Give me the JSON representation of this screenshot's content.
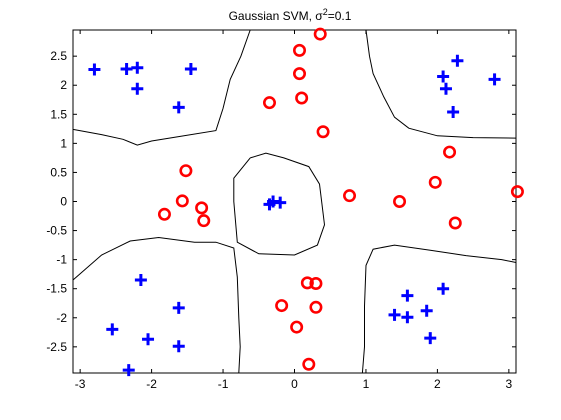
{
  "chart_data": {
    "type": "scatter",
    "title_main": "Gaussian SVM, σ",
    "title_sup": "2",
    "title_rest": "=0.1",
    "xlim": [
      -3.1,
      3.1
    ],
    "ylim": [
      -2.95,
      2.95
    ],
    "xticks": [
      -3,
      -2,
      -1,
      0,
      1,
      2,
      3
    ],
    "yticks": [
      2.5,
      2,
      1.5,
      1,
      0.5,
      0,
      -0.5,
      -1,
      -1.5,
      -2,
      -2.5
    ],
    "grid": false,
    "legend": "none",
    "series": [
      {
        "marker": "plus",
        "color": "#0000ff",
        "points": [
          [
            -2.8,
            2.27
          ],
          [
            -2.35,
            2.28
          ],
          [
            -2.2,
            2.3
          ],
          [
            -1.45,
            2.28
          ],
          [
            -2.2,
            1.94
          ],
          [
            -1.62,
            1.62
          ],
          [
            2.08,
            2.15
          ],
          [
            2.12,
            1.94
          ],
          [
            2.28,
            2.42
          ],
          [
            2.8,
            2.1
          ],
          [
            2.22,
            1.54
          ],
          [
            -0.35,
            -0.05
          ],
          [
            -0.3,
            0.0
          ],
          [
            -0.2,
            -0.02
          ],
          [
            -2.15,
            -1.35
          ],
          [
            -1.62,
            -1.83
          ],
          [
            -2.55,
            -2.2
          ],
          [
            -2.05,
            -2.37
          ],
          [
            -1.62,
            -2.49
          ],
          [
            -2.32,
            -2.9
          ],
          [
            1.58,
            -1.62
          ],
          [
            2.08,
            -1.5
          ],
          [
            1.4,
            -1.95
          ],
          [
            1.58,
            -1.99
          ],
          [
            1.85,
            -1.88
          ],
          [
            1.9,
            -2.35
          ]
        ]
      },
      {
        "marker": "circle",
        "color": "#ff0000",
        "points": [
          [
            0.36,
            2.88
          ],
          [
            0.07,
            2.6
          ],
          [
            0.07,
            2.2
          ],
          [
            0.1,
            1.78
          ],
          [
            -0.35,
            1.7
          ],
          [
            0.4,
            1.2
          ],
          [
            -1.52,
            0.53
          ],
          [
            -1.57,
            0.01
          ],
          [
            -1.82,
            -0.22
          ],
          [
            -1.3,
            -0.11
          ],
          [
            -1.27,
            -0.33
          ],
          [
            0.77,
            0.1
          ],
          [
            1.47,
            0.0
          ],
          [
            1.97,
            0.33
          ],
          [
            2.17,
            0.85
          ],
          [
            2.25,
            -0.37
          ],
          [
            3.12,
            0.17
          ],
          [
            0.18,
            -1.4
          ],
          [
            0.3,
            -1.41
          ],
          [
            -0.18,
            -1.79
          ],
          [
            0.3,
            -1.82
          ],
          [
            0.03,
            -2.16
          ],
          [
            0.2,
            -2.8
          ]
        ]
      }
    ],
    "boundaries": [
      [
        [
          -3.1,
          1.24
        ],
        [
          -2.7,
          1.15
        ],
        [
          -2.4,
          1.07
        ],
        [
          -2.2,
          0.97
        ],
        [
          -2.0,
          1.04
        ],
        [
          -1.6,
          1.12
        ],
        [
          -1.1,
          1.22
        ],
        [
          -1.0,
          1.6
        ],
        [
          -0.9,
          2.1
        ],
        [
          -0.75,
          2.5
        ],
        [
          -0.62,
          2.95
        ]
      ],
      [
        [
          1.0,
          2.95
        ],
        [
          1.05,
          2.5
        ],
        [
          1.1,
          2.2
        ],
        [
          1.25,
          1.8
        ],
        [
          1.4,
          1.45
        ],
        [
          1.6,
          1.26
        ],
        [
          2.0,
          1.13
        ],
        [
          2.5,
          1.1
        ],
        [
          3.1,
          1.09
        ]
      ],
      [
        [
          -3.1,
          -1.35
        ],
        [
          -2.7,
          -0.92
        ],
        [
          -2.3,
          -0.68
        ],
        [
          -1.9,
          -0.62
        ],
        [
          -1.4,
          -0.7
        ],
        [
          -1.1,
          -0.7
        ],
        [
          -0.85,
          -0.8
        ],
        [
          -0.8,
          -1.3
        ],
        [
          -0.78,
          -2.0
        ],
        [
          -0.76,
          -2.5
        ],
        [
          -0.78,
          -2.95
        ]
      ],
      [
        [
          0.95,
          -2.95
        ],
        [
          0.98,
          -2.5
        ],
        [
          0.98,
          -1.8
        ],
        [
          1.0,
          -1.1
        ],
        [
          1.1,
          -0.82
        ],
        [
          1.4,
          -0.75
        ],
        [
          1.9,
          -0.84
        ],
        [
          2.4,
          -0.93
        ],
        [
          2.9,
          -1.0
        ],
        [
          3.1,
          -1.05
        ]
      ],
      [
        [
          -0.62,
          0.75
        ],
        [
          -0.4,
          0.83
        ],
        [
          -0.15,
          0.75
        ],
        [
          0.2,
          0.6
        ],
        [
          0.35,
          0.3
        ],
        [
          0.42,
          -0.4
        ],
        [
          0.32,
          -0.75
        ],
        [
          0.0,
          -0.92
        ],
        [
          -0.5,
          -0.9
        ],
        [
          -0.8,
          -0.7
        ],
        [
          -0.85,
          0.0
        ],
        [
          -0.85,
          0.4
        ],
        [
          -0.62,
          0.75
        ]
      ]
    ]
  }
}
